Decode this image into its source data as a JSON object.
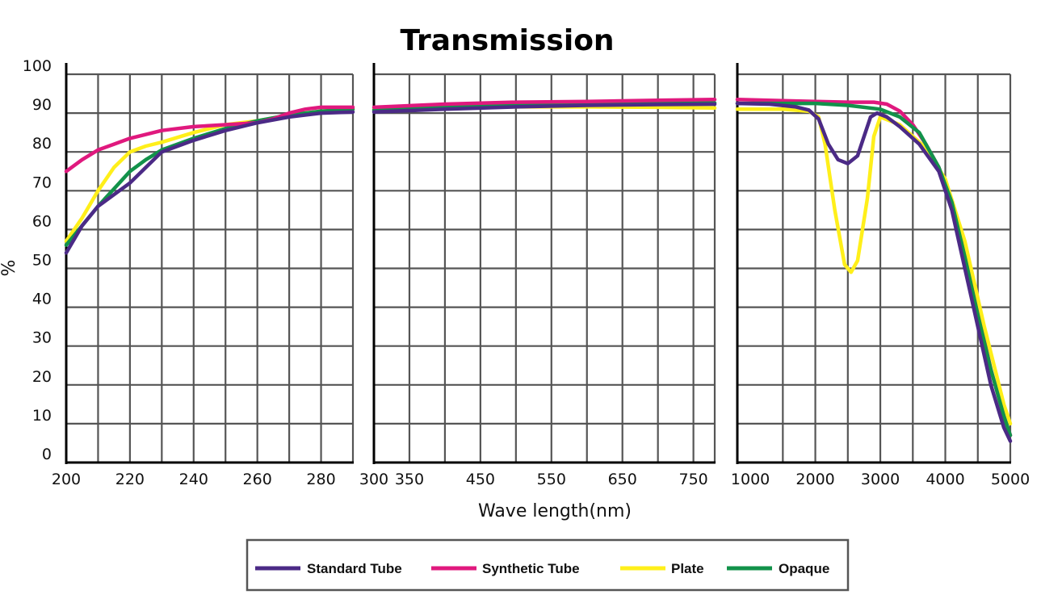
{
  "chart_data": {
    "type": "line",
    "title": "Transmission",
    "xlabel": "Wave length(nm)",
    "ylabel": "%",
    "ylim": [
      0,
      100
    ],
    "yticks": [
      "0",
      "10",
      "20",
      "30",
      "40",
      "50",
      "60",
      "70",
      "80",
      "90",
      "100"
    ],
    "grid": true,
    "legend_placement": "bottom-center",
    "legend": [
      {
        "name": "Standard Tube",
        "color": "#4b2a86"
      },
      {
        "name": "Synthetic Tube",
        "color": "#e0197e"
      },
      {
        "name": "Plate",
        "color": "#ffef1a"
      },
      {
        "name": "Opaque",
        "color": "#12924a"
      }
    ],
    "panels": [
      {
        "xlim": [
          200,
          290
        ],
        "xticks": [
          {
            "v": 200,
            "l": "200"
          },
          {
            "v": 220,
            "l": "220"
          },
          {
            "v": 240,
            "l": "240"
          },
          {
            "v": 260,
            "l": "260"
          },
          {
            "v": 280,
            "l": "280"
          }
        ],
        "xgrid": [
          200,
          210,
          220,
          230,
          240,
          250,
          260,
          270,
          280,
          290
        ],
        "series": [
          {
            "name": "Plate",
            "x": [
              200,
              205,
              210,
              215,
              220,
              225,
              230,
              240,
              250,
              260,
              270,
              280,
              290
            ],
            "y": [
              57,
              63,
              70,
              76,
              80,
              81.5,
              82.5,
              85,
              87,
              88,
              89.5,
              90.5,
              91
            ]
          },
          {
            "name": "Opaque",
            "x": [
              200,
              205,
              210,
              215,
              220,
              225,
              230,
              240,
              250,
              260,
              270,
              280,
              290
            ],
            "y": [
              56,
              61,
              66,
              70.5,
              75,
              78,
              80.5,
              83.5,
              86,
              88,
              89.5,
              90.5,
              91
            ]
          },
          {
            "name": "Synthetic Tube",
            "x": [
              200,
              205,
              210,
              215,
              220,
              225,
              230,
              240,
              250,
              260,
              265,
              270,
              275,
              280,
              290
            ],
            "y": [
              75,
              78,
              80.5,
              82,
              83.5,
              84.5,
              85.5,
              86.5,
              87,
              87.5,
              88.5,
              90,
              91,
              91.5,
              91.5
            ]
          },
          {
            "name": "Standard Tube",
            "x": [
              200,
              205,
              210,
              215,
              220,
              225,
              230,
              240,
              250,
              260,
              270,
              280,
              290
            ],
            "y": [
              54,
              61,
              66,
              69,
              72,
              76,
              80,
              83,
              85.5,
              87.5,
              89,
              90,
              90.3
            ]
          }
        ]
      },
      {
        "xlim": [
          300,
          780
        ],
        "xticks": [
          {
            "v": 300,
            "l": "300"
          },
          {
            "v": 350,
            "l": "350"
          },
          {
            "v": 450,
            "l": "450"
          },
          {
            "v": 550,
            "l": "550"
          },
          {
            "v": 650,
            "l": "650"
          },
          {
            "v": 750,
            "l": "750"
          }
        ],
        "xgrid": [
          300,
          350,
          400,
          450,
          500,
          550,
          600,
          650,
          700,
          750,
          780
        ],
        "series": [
          {
            "name": "Plate",
            "x": [
              300,
              400,
              500,
              600,
              700,
              780
            ],
            "y": [
              91,
              91.5,
              91.6,
              91.6,
              91.5,
              91.3
            ]
          },
          {
            "name": "Opaque",
            "x": [
              300,
              400,
              500,
              600,
              700,
              780
            ],
            "y": [
              90.8,
              91.5,
              92,
              92.3,
              92.5,
              92.6
            ]
          },
          {
            "name": "Synthetic Tube",
            "x": [
              300,
              400,
              500,
              600,
              700,
              780
            ],
            "y": [
              91.5,
              92.3,
              92.8,
              93,
              93.3,
              93.5
            ]
          },
          {
            "name": "Standard Tube",
            "x": [
              300,
              400,
              500,
              600,
              700,
              780
            ],
            "y": [
              90.3,
              91,
              91.6,
              92,
              92.2,
              92.3
            ]
          }
        ]
      },
      {
        "xlim": [
          800,
          5000
        ],
        "xticks": [
          {
            "v": 1000,
            "l": "1000"
          },
          {
            "v": 2000,
            "l": "2000"
          },
          {
            "v": 3000,
            "l": "3000"
          },
          {
            "v": 4000,
            "l": "4000"
          },
          {
            "v": 5000,
            "l": "5000"
          }
        ],
        "xgrid": [
          800,
          1500,
          2000,
          2500,
          3000,
          3500,
          4000,
          4500,
          5000
        ],
        "series": [
          {
            "name": "Synthetic Tube",
            "x": [
              800,
              1500,
              2000,
              2500,
              2900,
              3100,
              3300,
              3500,
              3700,
              3900,
              4100,
              4300,
              4500,
              4700,
              4900,
              5000
            ],
            "y": [
              93.5,
              93.2,
              93,
              92.8,
              92.8,
              92.3,
              90.5,
              87,
              82,
              76,
              67,
              54,
              39,
              24,
              12,
              7
            ]
          },
          {
            "name": "Plate",
            "x": [
              800,
              1500,
              1900,
              2050,
              2150,
              2300,
              2450,
              2550,
              2650,
              2800,
              2900,
              3000,
              3300,
              3700,
              4000,
              4300,
              4600,
              4900,
              5000
            ],
            "y": [
              91,
              91,
              90.5,
              89,
              82,
              65,
              51,
              49,
              52,
              68,
              84,
              89,
              87,
              81,
              73,
              57,
              35,
              15,
              10
            ]
          },
          {
            "name": "Opaque",
            "x": [
              800,
              1500,
              2000,
              2500,
              3000,
              3300,
              3600,
              3900,
              4100,
              4300,
              4500,
              4700,
              4900,
              5000
            ],
            "y": [
              92.5,
              92.5,
              92.5,
              92,
              91,
              89,
              85,
              76,
              67,
              53,
              38,
              24,
              12,
              7
            ]
          },
          {
            "name": "Standard Tube",
            "x": [
              800,
              1300,
              1700,
              1900,
              2050,
              2200,
              2350,
              2500,
              2650,
              2750,
              2850,
              2950,
              3100,
              3300,
              3600,
              3900,
              4100,
              4300,
              4500,
              4700,
              4900,
              5000
            ],
            "y": [
              92.5,
              92.3,
              91.6,
              90.8,
              88.5,
              82,
              78,
              77,
              79,
              84,
              89,
              90,
              89,
              86.5,
              82,
              75,
              65,
              50,
              35,
              20,
              9,
              5.5
            ]
          }
        ]
      }
    ]
  }
}
